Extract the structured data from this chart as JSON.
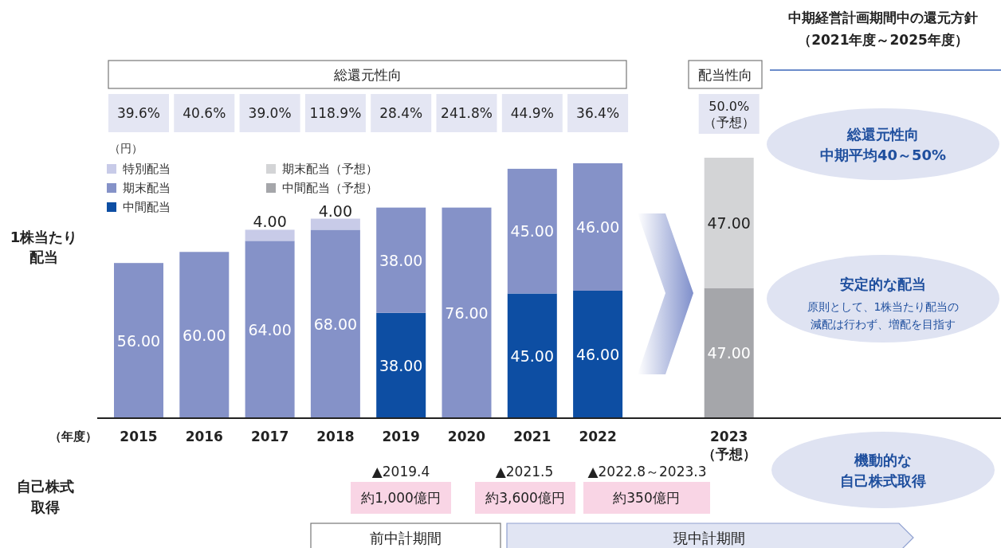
{
  "chart_data": {
    "type": "bar",
    "stacked": true,
    "legend": "top left",
    "xlabel": "（年度）",
    "categories": [
      "2015",
      "2016",
      "2017",
      "2018",
      "2019",
      "2020",
      "2021",
      "2022",
      null,
      "2023\n（予想）"
    ],
    "series": [
      {
        "name": "中間配当",
        "color": "#0d4ea3",
        "values": [
          null,
          null,
          null,
          null,
          38,
          null,
          45,
          46,
          null,
          null
        ],
        "value_labels": [
          null,
          null,
          null,
          null,
          "38.00",
          null,
          "45.00",
          "46.00",
          null,
          null
        ]
      },
      {
        "name": "期末配当",
        "color": "#8592c8",
        "values": [
          56,
          60,
          64,
          68,
          38,
          76,
          45,
          46,
          null,
          null
        ],
        "value_labels": [
          "56.00",
          "60.00",
          "64.00",
          "68.00",
          "38.00",
          "76.00",
          "45.00",
          "46.00",
          null,
          null
        ]
      },
      {
        "name": "特別配当",
        "color": "#c8cbe8",
        "values": [
          null,
          null,
          4,
          4,
          null,
          null,
          null,
          null,
          null,
          null
        ],
        "value_labels": [
          null,
          null,
          "4.00",
          "4.00",
          null,
          null,
          null,
          null,
          null,
          null
        ]
      },
      {
        "name": "中間配当（予想）",
        "color": "#a5a6aa",
        "values": [
          null,
          null,
          null,
          null,
          null,
          null,
          null,
          null,
          null,
          47
        ],
        "value_labels": [
          null,
          null,
          null,
          null,
          null,
          null,
          null,
          null,
          null,
          "47.00"
        ]
      },
      {
        "name": "期末配当（予想）",
        "color": "#d3d4d6",
        "values": [
          null,
          null,
          null,
          null,
          null,
          null,
          null,
          null,
          null,
          47
        ],
        "value_labels": [
          null,
          null,
          null,
          null,
          null,
          null,
          null,
          null,
          null,
          "47.00"
        ]
      }
    ],
    "annotations": [
      "（円）",
      "総還元性向",
      "配当性向",
      "中期経営計画期間中の還元方針",
      "（2021年度～2025年度）",
      "総還元性向",
      "中期平均40～50%",
      "安定的な配当",
      "原則として、1株当たり配当の",
      "減配は行わず、増配を目指す",
      "機動的な",
      "自己株式取得",
      "自己株式",
      "取得",
      "▲2019.4",
      "約1,000億円",
      "▲2021.5",
      "約3,600億円",
      "▲2022.8～2023.3",
      "約350億円",
      "前中計期間",
      "現中計期間",
      "1株当たり",
      "配当",
      "39.6%",
      "40.6%",
      "39.0%",
      "118.9%",
      "28.4%",
      "241.8%",
      "44.9%",
      "36.4%",
      "50.0%\n（予想）"
    ]
  }
}
